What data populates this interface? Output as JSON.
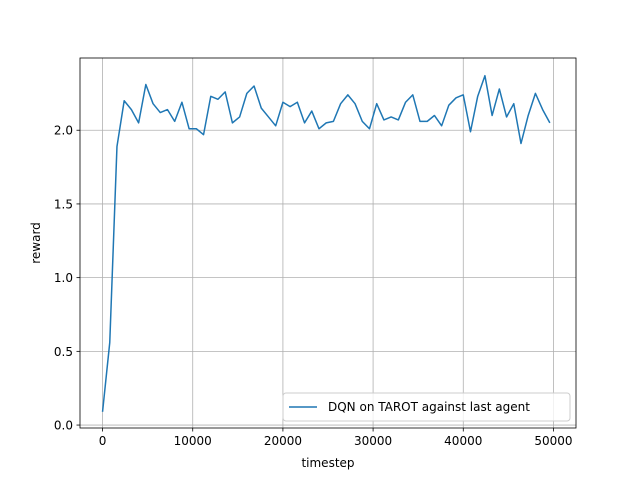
{
  "chart_data": {
    "type": "line",
    "title": "",
    "xlabel": "timestep",
    "ylabel": "reward",
    "xlim": [
      -2500,
      52500
    ],
    "ylim": [
      -0.02,
      2.49
    ],
    "xticks": [
      0,
      10000,
      20000,
      30000,
      40000,
      50000
    ],
    "xtick_labels": [
      "0",
      "10000",
      "20000",
      "30000",
      "40000",
      "50000"
    ],
    "yticks": [
      0.0,
      0.5,
      1.0,
      1.5,
      2.0
    ],
    "ytick_labels": [
      "0.0",
      "0.5",
      "1.0",
      "1.5",
      "2.0"
    ],
    "grid": true,
    "legend_position": "lower-right",
    "series": [
      {
        "name": "DQN on TAROT against last agent",
        "color": "#1f77b4",
        "x": [
          0,
          800,
          1600,
          2400,
          3200,
          4000,
          4800,
          5600,
          6400,
          7200,
          8000,
          8800,
          9600,
          10400,
          11200,
          12000,
          12800,
          13600,
          14400,
          15200,
          16000,
          16800,
          17600,
          18400,
          19200,
          20000,
          20800,
          21600,
          22400,
          23200,
          24000,
          24800,
          25600,
          26400,
          27200,
          28000,
          28800,
          29600,
          30400,
          31200,
          32000,
          32800,
          33600,
          34400,
          35200,
          36000,
          36800,
          37600,
          38400,
          39200,
          40000,
          40800,
          41600,
          42400,
          43200,
          44000,
          44800,
          45600,
          46400,
          47200,
          48000,
          48800,
          49600
        ],
        "values": [
          0.09,
          0.56,
          1.89,
          2.2,
          2.14,
          2.05,
          2.31,
          2.18,
          2.12,
          2.14,
          2.06,
          2.19,
          2.01,
          2.01,
          1.97,
          2.23,
          2.21,
          2.26,
          2.05,
          2.09,
          2.25,
          2.3,
          2.15,
          2.09,
          2.03,
          2.19,
          2.16,
          2.19,
          2.05,
          2.13,
          2.01,
          2.05,
          2.06,
          2.18,
          2.24,
          2.18,
          2.06,
          2.01,
          2.18,
          2.07,
          2.09,
          2.07,
          2.19,
          2.24,
          2.06,
          2.06,
          2.1,
          2.03,
          2.17,
          2.22,
          2.24,
          1.99,
          2.23,
          2.37,
          2.1,
          2.28,
          2.09,
          2.18,
          1.91,
          2.1,
          2.25,
          2.14,
          2.05
        ]
      }
    ]
  }
}
